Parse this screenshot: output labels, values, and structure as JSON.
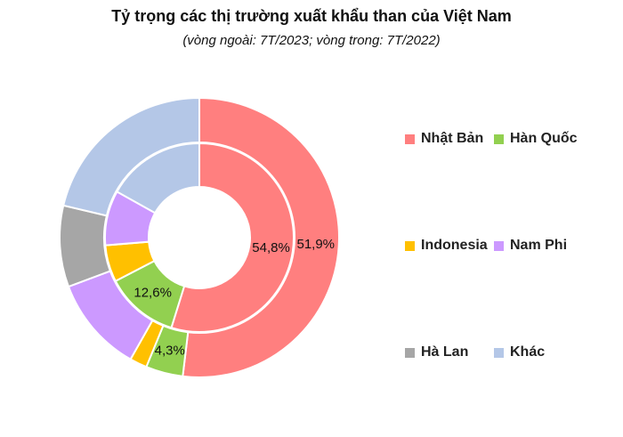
{
  "chart_data": {
    "type": "donut",
    "title": "Tỷ trọng các thị trường xuất khẩu than của Việt Nam",
    "subtitle": "(vòng ngoài: 7T/2023; vòng trong: 7T/2022)",
    "categories": [
      "Nhật Bản",
      "Hàn Quốc",
      "Indonesia",
      "Nam Phi",
      "Hà Lan",
      "Khác"
    ],
    "colors": [
      "#FF7F7F",
      "#92D050",
      "#FFC000",
      "#CC99FF",
      "#A6A6A6",
      "#B4C7E7"
    ],
    "series": [
      {
        "ring": "outer",
        "values": [
          51.9,
          4.3,
          2.0,
          11.1,
          9.4,
          21.3
        ],
        "labels": [
          "51,9%",
          "4,3%",
          "",
          "",
          "",
          ""
        ]
      },
      {
        "ring": "inner",
        "values": [
          54.8,
          12.6,
          6.3,
          9.4,
          0,
          16.9
        ],
        "labels": [
          "54,8%",
          "12,6%",
          "",
          "",
          "",
          ""
        ]
      }
    ],
    "legend_position": "right"
  }
}
